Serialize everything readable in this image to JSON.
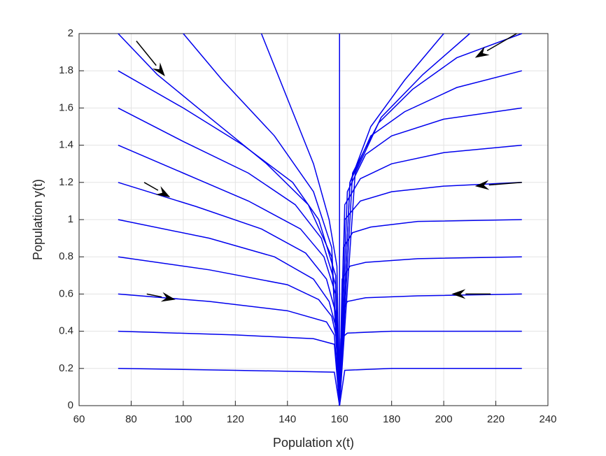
{
  "chart_data": {
    "type": "line",
    "xlabel": "Population x(t)",
    "ylabel": "Population y(t)",
    "xlim": [
      60,
      240
    ],
    "xticks": [
      60,
      80,
      100,
      120,
      140,
      160,
      180,
      200,
      220,
      240
    ],
    "ylim": [
      0,
      2
    ],
    "yticks": [
      0,
      0.2,
      0.4,
      0.6,
      0.8,
      1,
      1.2,
      1.4,
      1.6,
      1.8,
      2
    ],
    "grid": true,
    "color": "#0000ee",
    "arrow_color": "#000000",
    "series": [
      {
        "x": [
          75,
          120,
          158,
          160
        ],
        "values": [
          0.2,
          0.19,
          0.18,
          0
        ]
      },
      {
        "x": [
          75,
          120,
          150,
          158,
          160
        ],
        "values": [
          0.4,
          0.38,
          0.36,
          0.33,
          0
        ]
      },
      {
        "x": [
          75,
          110,
          140,
          155,
          158,
          160
        ],
        "values": [
          0.6,
          0.56,
          0.51,
          0.45,
          0.38,
          0
        ]
      },
      {
        "x": [
          75,
          110,
          140,
          152,
          157,
          159,
          160
        ],
        "values": [
          0.8,
          0.73,
          0.65,
          0.57,
          0.48,
          0.35,
          0
        ]
      },
      {
        "x": [
          75,
          110,
          135,
          150,
          156,
          159,
          160
        ],
        "values": [
          1.0,
          0.9,
          0.8,
          0.68,
          0.56,
          0.4,
          0
        ]
      },
      {
        "x": [
          75,
          105,
          130,
          147,
          155,
          158.5,
          160
        ],
        "values": [
          1.2,
          1.07,
          0.95,
          0.82,
          0.68,
          0.5,
          0
        ]
      },
      {
        "x": [
          75,
          100,
          125,
          145,
          154,
          158.5,
          160
        ],
        "values": [
          1.4,
          1.25,
          1.1,
          0.95,
          0.8,
          0.6,
          0
        ]
      },
      {
        "x": [
          75,
          100,
          125,
          143,
          153,
          158.5,
          160
        ],
        "values": [
          1.6,
          1.42,
          1.25,
          1.08,
          0.9,
          0.65,
          0
        ]
      },
      {
        "x": [
          75,
          100,
          123,
          142,
          152,
          158.5,
          160
        ],
        "values": [
          1.8,
          1.6,
          1.4,
          1.2,
          1.0,
          0.7,
          0
        ]
      },
      {
        "x": [
          75,
          90,
          110,
          132,
          148,
          157,
          160
        ],
        "values": [
          2.0,
          1.78,
          1.55,
          1.3,
          1.08,
          0.8,
          0
        ]
      },
      {
        "x": [
          100,
          115,
          135,
          150,
          157,
          160
        ],
        "values": [
          2.0,
          1.75,
          1.45,
          1.15,
          0.85,
          0
        ]
      },
      {
        "x": [
          130,
          140,
          150,
          156,
          159,
          160
        ],
        "values": [
          2.0,
          1.65,
          1.3,
          1.0,
          0.75,
          0
        ]
      },
      {
        "x": [
          160,
          160
        ],
        "values": [
          2.0,
          0
        ]
      },
      {
        "x": [
          230,
          180,
          162,
          160
        ],
        "values": [
          0.2,
          0.2,
          0.19,
          0
        ]
      },
      {
        "x": [
          230,
          180,
          163,
          160.5,
          160
        ],
        "values": [
          0.4,
          0.4,
          0.39,
          0.36,
          0
        ]
      },
      {
        "x": [
          230,
          190,
          170,
          163,
          161,
          160
        ],
        "values": [
          0.6,
          0.59,
          0.58,
          0.56,
          0.5,
          0
        ]
      },
      {
        "x": [
          230,
          190,
          170,
          164,
          161,
          160
        ],
        "values": [
          0.8,
          0.79,
          0.77,
          0.75,
          0.68,
          0
        ]
      },
      {
        "x": [
          230,
          190,
          172,
          165,
          161.5,
          160
        ],
        "values": [
          1.0,
          0.99,
          0.96,
          0.93,
          0.85,
          0
        ]
      },
      {
        "x": [
          230,
          200,
          180,
          168,
          162,
          160
        ],
        "values": [
          1.2,
          1.18,
          1.15,
          1.1,
          1.0,
          0
        ]
      },
      {
        "x": [
          230,
          200,
          180,
          168,
          162,
          160
        ],
        "values": [
          1.4,
          1.36,
          1.3,
          1.22,
          1.08,
          0
        ]
      },
      {
        "x": [
          230,
          200,
          180,
          170,
          163,
          160
        ],
        "values": [
          1.6,
          1.54,
          1.45,
          1.35,
          1.15,
          0
        ]
      },
      {
        "x": [
          230,
          205,
          185,
          172,
          164,
          160
        ],
        "values": [
          1.8,
          1.71,
          1.58,
          1.45,
          1.2,
          0
        ]
      },
      {
        "x": [
          230,
          205,
          188,
          175,
          165,
          160
        ],
        "values": [
          2.0,
          1.87,
          1.7,
          1.52,
          1.25,
          0
        ]
      },
      {
        "x": [
          200,
          185,
          172,
          164,
          160
        ],
        "values": [
          2.0,
          1.75,
          1.5,
          1.2,
          0
        ]
      },
      {
        "x": [
          210,
          192,
          176,
          166,
          160
        ],
        "values": [
          2.0,
          1.78,
          1.55,
          1.25,
          0
        ]
      }
    ],
    "arrows": [
      {
        "x": [
          82,
          93
        ],
        "y": [
          1.96,
          1.77
        ]
      },
      {
        "x": [
          85,
          95
        ],
        "y": [
          1.2,
          1.12
        ]
      },
      {
        "x": [
          86,
          97
        ],
        "y": [
          0.6,
          0.57
        ]
      },
      {
        "x": [
          228,
          212
        ],
        "y": [
          2.0,
          1.87
        ]
      },
      {
        "x": [
          230,
          212
        ],
        "y": [
          1.2,
          1.18
        ]
      },
      {
        "x": [
          218,
          203
        ],
        "y": [
          0.6,
          0.6
        ]
      }
    ]
  }
}
